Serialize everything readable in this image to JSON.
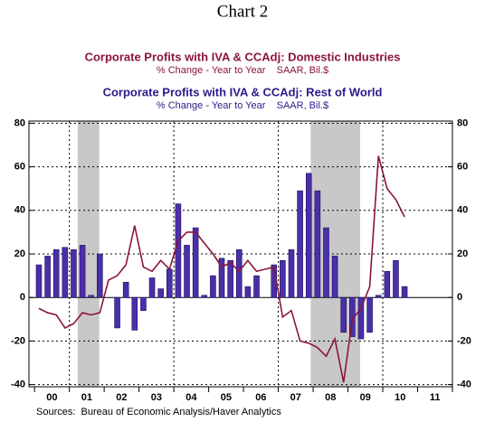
{
  "chart_data": {
    "type": "bar",
    "title": "Chart 2",
    "source": "Sources:  Bureau of Economic Analysis/Haver Analytics",
    "xticks": [
      "00",
      "01",
      "02",
      "03",
      "04",
      "05",
      "06",
      "07",
      "08",
      "09",
      "10",
      "11"
    ],
    "xlim": [
      -0.16,
      12.0
    ],
    "ylim": [
      -41,
      81
    ],
    "yticks": [
      -40,
      -20,
      0,
      20,
      40,
      60,
      80
    ],
    "grid": true,
    "shading": [
      [
        1.24,
        1.86
      ],
      [
        7.93,
        9.35
      ]
    ],
    "shading_color": "#c8c8c8",
    "series": [
      {
        "name": "Corporate Profits with IVA & CCAdj: Domestic Industries",
        "note": "% Change - Year to Year    SAAR, Bil.$",
        "type": "line",
        "color": "#8b1538",
        "values": [
          -5,
          -7,
          -8,
          -14,
          -12,
          -7,
          -8,
          -7,
          8,
          10,
          15,
          33,
          14,
          12,
          17,
          13,
          26,
          30,
          30,
          25,
          20,
          14,
          16,
          12,
          17,
          12,
          13,
          14,
          -9,
          -6,
          -20,
          -21,
          -23,
          -27,
          -19,
          -39,
          -10,
          -5,
          5,
          65,
          50,
          45,
          37
        ]
      },
      {
        "name": "Corporate Profits with IVA & CCAdj: Rest of World",
        "note": "% Change - Year to Year    SAAR, Bil.$",
        "type": "bar",
        "color": "#4b2fa8",
        "values": [
          15,
          19,
          22,
          23,
          22,
          24,
          1,
          20,
          0,
          -14,
          7,
          -15,
          -6,
          9,
          4,
          13,
          43,
          24,
          32,
          1,
          10,
          18,
          17,
          22,
          5,
          10,
          0,
          15,
          17,
          22,
          49,
          57,
          49,
          32,
          19,
          -16,
          -18,
          -19,
          -16,
          1,
          12,
          17,
          5
        ]
      }
    ]
  }
}
